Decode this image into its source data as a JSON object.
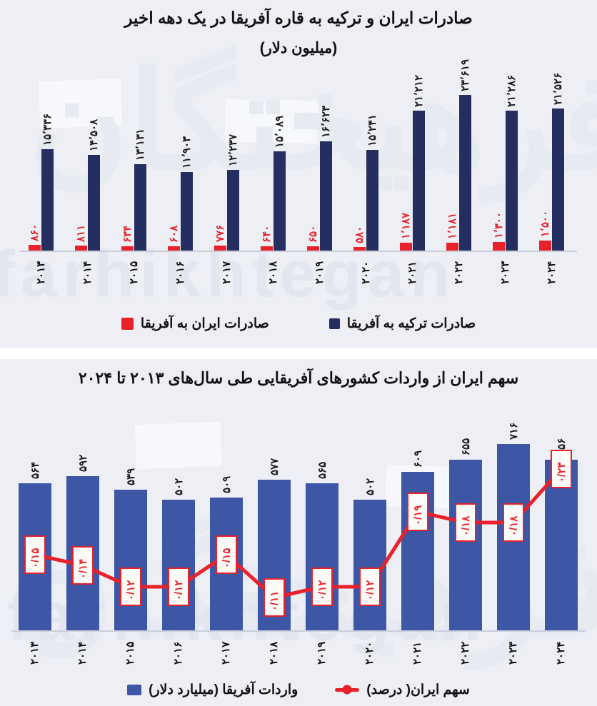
{
  "watermark": {
    "latin": "farhikhtegan",
    "persian": "فرهیختگان"
  },
  "colors": {
    "card_background": "#edeff4",
    "navy": "#252e60",
    "red": "#e8212a",
    "blue": "#3d57a6",
    "axis": "#c9ced9",
    "label_dark": "#1a1a1a"
  },
  "chart_data": [
    {
      "type": "bar",
      "title": "صادرات ایران و ترکیه به قاره آفریقا در یک دهه اخیر",
      "subtitle": "(میلیون دلار)",
      "categories": [
        2013,
        2014,
        2015,
        2016,
        2017,
        2018,
        2019,
        2020,
        2021,
        2022,
        2023,
        2024
      ],
      "category_labels": [
        "۲۰۱۳",
        "۲۰۱۴",
        "۲۰۱۵",
        "۲۰۱۶",
        "۲۰۱۷",
        "۲۰۱۸",
        "۲۰۱۹",
        "۲۰۲۰",
        "۲۰۲۱",
        "۲۰۲۲",
        "۲۰۲۳",
        "۲۰۲۴"
      ],
      "series": [
        {
          "name": "صادرات ایران به آفریقا",
          "color": "#e8212a",
          "values": [
            860,
            811,
            634,
            608,
            776,
            640,
            650,
            580,
            1187,
            1181,
            1300,
            1500
          ],
          "labels": [
            "۸۶۰",
            "۸۱۱",
            "۶۳۴",
            "۶۰۸",
            "۷۷۶",
            "۶۴۰",
            "۶۵۰",
            "۵۸۰",
            "۱٬۱۸۷",
            "۱٬۱۸۱",
            "۱٬۳۰۰",
            "۱٬۵۰۰"
          ]
        },
        {
          "name": "صادرات ترکیه به آفریقا",
          "color": "#252e60",
          "values": [
            15336,
            14508,
            13131,
            11903,
            12237,
            15089,
            16623,
            15241,
            21212,
            23619,
            21286,
            21526
          ],
          "labels": [
            "۱۵٬۳۳۶",
            "۱۴٬۵۰۸",
            "۱۳٬۱۳۱",
            "۱۱٬۹۰۳",
            "۱۲٬۲۳۷",
            "۱۵٬۰۸۹",
            "۱۶٬۶۲۳",
            "۱۵٬۲۴۱",
            "۲۱٬۲۱۲",
            "۲۳٬۶۱۹",
            "۲۱٬۲۸۶",
            "۲۱٬۵۲۶"
          ]
        }
      ],
      "ylim": [
        0,
        24000
      ],
      "grid": false,
      "legend_position": "bottom"
    },
    {
      "type": "bar+line",
      "title": "سهم ایران از واردات کشورهای آفریقایی طی سال‌های ۲۰۱۳ تا ۲۰۲۴",
      "categories": [
        2013,
        2014,
        2015,
        2016,
        2017,
        2018,
        2019,
        2020,
        2021,
        2022,
        2023,
        2024
      ],
      "category_labels": [
        "۲۰۱۳",
        "۲۰۱۴",
        "۲۰۱۵",
        "۲۰۱۶",
        "۲۰۱۷",
        "۲۰۱۸",
        "۲۰۱۹",
        "۲۰۲۰",
        "۲۰۲۱",
        "۲۰۲۲",
        "۲۰۲۳",
        "۲۰۲۴"
      ],
      "bar_series": {
        "name": "واردات آفریقا (میلیارد دلار)",
        "color": "#3d57a6",
        "values": [
          564,
          592,
          539,
          502,
          509,
          577,
          565,
          502,
          609,
          655,
          716,
          656
        ],
        "labels": [
          "۵۶۴",
          "۵۹۲",
          "۵۳۹",
          "۵۰۲",
          "۵۰۹",
          "۵۷۷",
          "۵۶۵",
          "۵۰۲",
          "۶۰۹",
          "۶۵۵",
          "۷۱۶",
          "۶۵۶"
        ]
      },
      "line_series": {
        "name": "سهم ایران( درصد)",
        "color": "#e8212a",
        "values": [
          0.15,
          0.14,
          0.12,
          0.12,
          0.15,
          0.11,
          0.12,
          0.12,
          0.19,
          0.18,
          0.18,
          0.23
        ],
        "labels": [
          "۰/۱۵",
          "۰/۱۴",
          "۰/۱۲",
          "۰/۱۲",
          "۰/۱۵",
          "۰/۱۱",
          "۰/۱۲",
          "۰/۱۲",
          "۰/۱۹",
          "۰/۱۸",
          "۰/۱۸",
          "۰/۲۳"
        ]
      },
      "grid": false,
      "legend_position": "bottom"
    }
  ]
}
